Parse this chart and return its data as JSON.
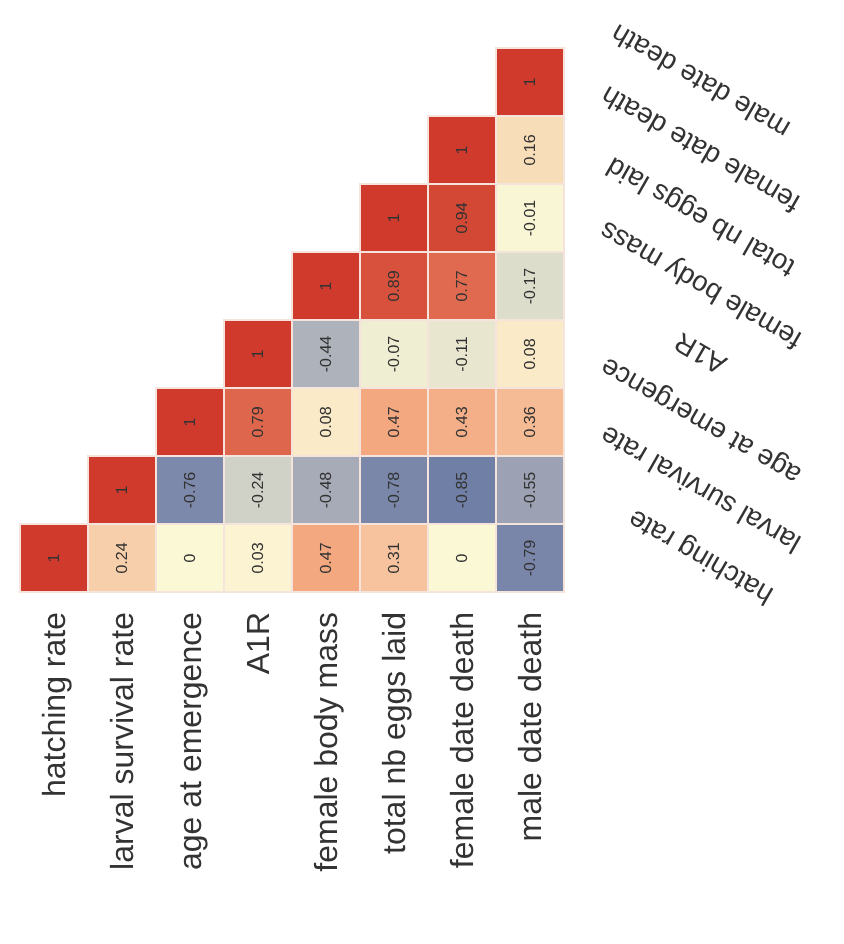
{
  "chart_data": {
    "type": "heatmap",
    "categories": [
      "hatching rate",
      "larval survival rate",
      "age at emergence",
      "A1R",
      "female body mass",
      "total nb eggs laid",
      "female date death",
      "male date death"
    ],
    "y_categories": [
      "male date death",
      "female date death",
      "total nb eggs laid",
      "female body mass",
      "A1R",
      "age at emergence",
      "larval survival rate",
      "hatching rate"
    ],
    "cells": [
      [
        null,
        null,
        null,
        null,
        null,
        null,
        null,
        1
      ],
      [
        null,
        null,
        null,
        null,
        null,
        null,
        1,
        0.16
      ],
      [
        null,
        null,
        null,
        null,
        null,
        1,
        0.94,
        -0.01
      ],
      [
        null,
        null,
        null,
        null,
        1,
        0.89,
        0.77,
        -0.17
      ],
      [
        null,
        null,
        null,
        1,
        -0.44,
        -0.07,
        -0.11,
        0.08
      ],
      [
        null,
        null,
        1,
        0.79,
        0.08,
        0.47,
        0.43,
        0.36
      ],
      [
        null,
        1,
        -0.76,
        -0.24,
        -0.48,
        -0.78,
        -0.85,
        -0.55
      ],
      [
        1,
        0.24,
        0,
        0.03,
        0.47,
        0.31,
        0,
        -0.79
      ]
    ],
    "data_labels": true
  }
}
